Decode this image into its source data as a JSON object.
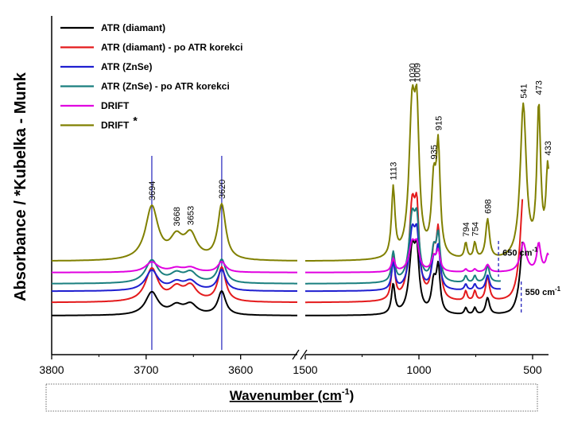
{
  "chart_data": {
    "type": "line",
    "title": "",
    "xlabel_main": "Wavenumber (cm",
    "xlabel_sup": "-1",
    "xlabel_close": ")",
    "ylabel": "Absorbance / *Kubelka - Munk",
    "x_segments": [
      {
        "xlim": [
          3800,
          3540
        ],
        "ticks": [
          3800,
          3700,
          3600
        ]
      },
      {
        "xlim": [
          1500,
          430
        ],
        "ticks": [
          1500,
          1000,
          500
        ]
      }
    ],
    "axis_break_between": [
      3540,
      1500
    ],
    "grid": false,
    "legend_position": "top-left",
    "series": [
      {
        "name": "ATR (diamant)",
        "color": "#000000",
        "offset": 0.0,
        "scale": 0.45,
        "xmax": 3800,
        "xmin": 545,
        "edge_rise": 0.55
      },
      {
        "name": "ATR (diamant) - po ATR korekci",
        "color": "#e41a1c",
        "offset": 0.07,
        "scale": 0.65,
        "xmax": 3800,
        "xmin": 545,
        "edge_rise": 0.6
      },
      {
        "name": "ATR (ZnSe)",
        "color": "#1f1fd0",
        "offset": 0.13,
        "scale": 0.4,
        "xmax": 3800,
        "xmin": 640,
        "edge_rise": 0.0
      },
      {
        "name": "ATR (ZnSe) - po ATR korekci",
        "color": "#1a7f7f",
        "offset": 0.17,
        "scale": 0.45,
        "xmax": 3800,
        "xmin": 640,
        "edge_rise": 0.0
      },
      {
        "name": "DRIFT",
        "color": "#e000e0",
        "offset": 0.23,
        "scale": 0.2,
        "xmax": 3800,
        "xmin": 430,
        "edge_rise": 0.0
      },
      {
        "name": "DRIFT",
        "name_suffix": "*",
        "color": "#808000",
        "offset": 0.29,
        "scale": 1.05,
        "xmax": 3800,
        "xmin": 430,
        "edge_rise": 0.0
      }
    ],
    "peaks": [
      {
        "x": 3694,
        "h": 0.27,
        "w": 8
      },
      {
        "x": 3668,
        "h": 0.1,
        "w": 8
      },
      {
        "x": 3653,
        "h": 0.12,
        "w": 8
      },
      {
        "x": 3620,
        "h": 0.28,
        "w": 5
      },
      {
        "x": 1113,
        "h": 0.35,
        "w": 9
      },
      {
        "x": 1030,
        "h": 0.72,
        "w": 16
      },
      {
        "x": 1009,
        "h": 0.6,
        "w": 12
      },
      {
        "x": 935,
        "h": 0.35,
        "w": 12
      },
      {
        "x": 915,
        "h": 0.52,
        "w": 10
      },
      {
        "x": 794,
        "h": 0.08,
        "w": 7
      },
      {
        "x": 754,
        "h": 0.08,
        "w": 7
      },
      {
        "x": 698,
        "h": 0.2,
        "w": 10
      },
      {
        "x": 541,
        "h": 0.78,
        "w": 16
      },
      {
        "x": 473,
        "h": 0.75,
        "w": 10
      },
      {
        "x": 433,
        "h": 0.45,
        "w": 10
      }
    ],
    "peak_labels": [
      "3694",
      "3668",
      "3653",
      "3620",
      "1113",
      "1030",
      "1009",
      "935",
      "915",
      "794",
      "754",
      "698",
      "541",
      "473",
      "433"
    ],
    "reference_lines": [
      3694,
      3620
    ],
    "cutoff_markers": [
      {
        "x": 650,
        "label": "650 cm",
        "sup": "-1"
      },
      {
        "x": 550,
        "label": "550 cm",
        "sup": "-1"
      }
    ]
  }
}
